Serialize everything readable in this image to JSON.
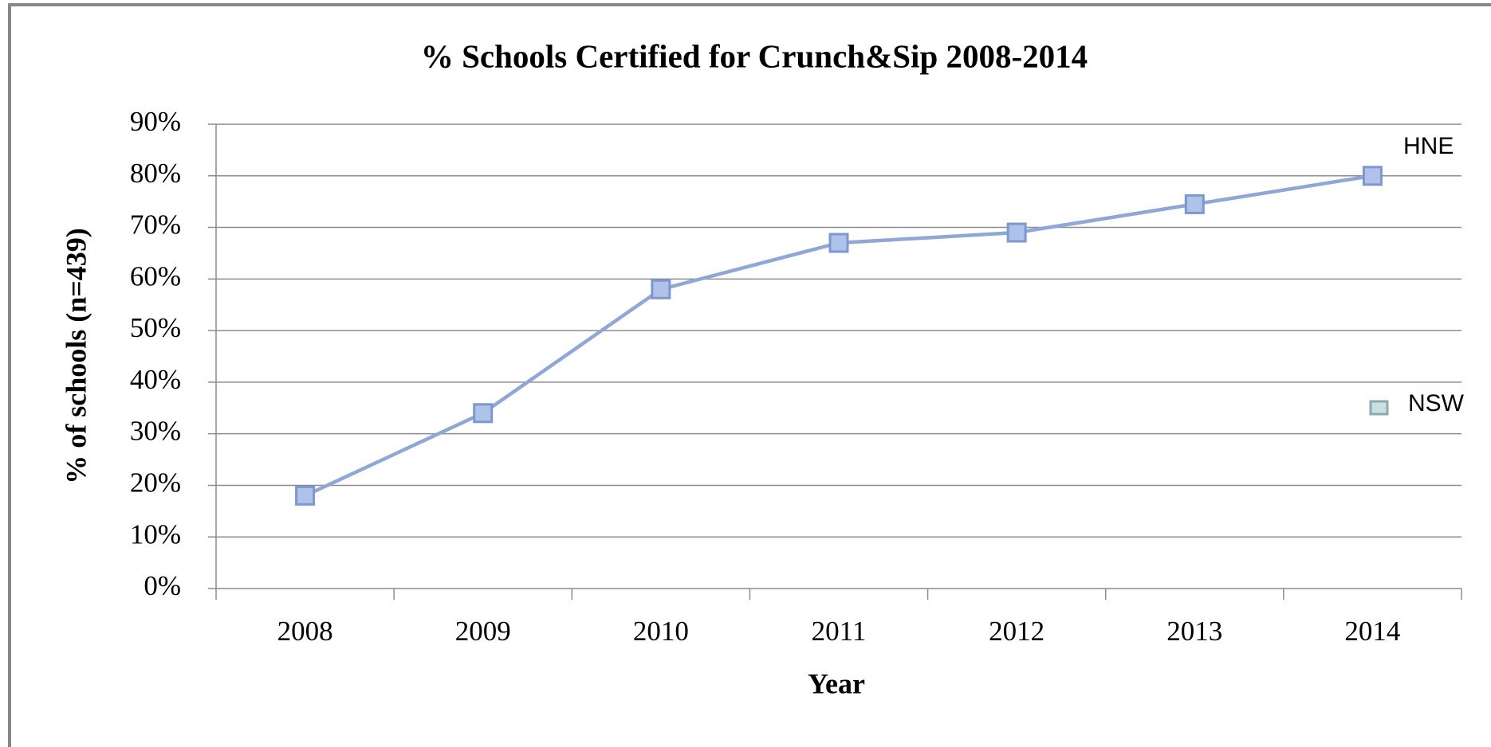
{
  "chart_data": {
    "type": "line",
    "title": "% Schools Certified for Crunch&Sip 2008-2014",
    "x_label": "Year",
    "y_label": "% of schools (n=439)",
    "categories": [
      "2008",
      "2009",
      "2010",
      "2011",
      "2012",
      "2013",
      "2014"
    ],
    "series": [
      {
        "name": "HNE",
        "color": "#8ea7d6",
        "values": [
          18,
          34,
          58,
          67,
          69,
          74.5,
          80
        ]
      }
    ],
    "annotations": [
      "HNE",
      "NSW"
    ],
    "ylim": [
      0,
      90
    ],
    "yticks": [
      {
        "value": 0,
        "label": "0%"
      },
      {
        "value": 10,
        "label": "10%"
      },
      {
        "value": 20,
        "label": "20%"
      },
      {
        "value": 30,
        "label": "30%"
      },
      {
        "value": 40,
        "label": "40%"
      },
      {
        "value": 50,
        "label": "50%"
      },
      {
        "value": 60,
        "label": "60%"
      },
      {
        "value": 70,
        "label": "70%"
      },
      {
        "value": 80,
        "label": "80%"
      },
      {
        "value": 90,
        "label": "90%"
      }
    ],
    "grid": true
  }
}
